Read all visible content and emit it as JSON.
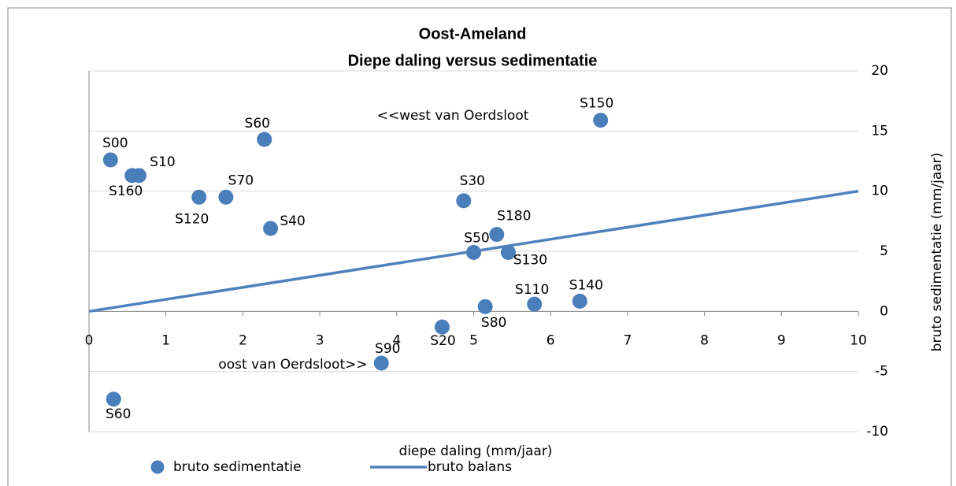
{
  "chart_data": {
    "type": "scatter",
    "title": "Oost-Ameland",
    "subtitle": "Diepe daling versus sedimentatie",
    "x_label": "diepe daling (mm/jaar)",
    "y_label": "bruto sedimentatie (mm/jaar)",
    "annotations": [
      "<<west van Oerdsloot",
      "oost van Oerdsloot>>"
    ],
    "xlim": [
      0,
      10
    ],
    "xticks": [
      0,
      1,
      2,
      3,
      4,
      5,
      6,
      7,
      8,
      9,
      10
    ],
    "ylim": [
      -10,
      20
    ],
    "yticks": [
      -10,
      -5,
      0,
      5,
      10,
      15,
      20
    ],
    "grid": true,
    "legend": "bottom",
    "series": [
      {
        "name": "bruto sedimentatie",
        "color": "#4a7ebb",
        "mode": "markers",
        "labels": [
          "S00",
          "S160",
          "S10",
          "S60",
          "S120",
          "S70",
          "S40",
          "S30",
          "S150",
          "S180",
          "S50",
          "S130",
          "S140",
          "S110",
          "S80",
          "S20",
          "S90",
          "S60"
        ],
        "x": [
          0.28,
          0.56,
          0.65,
          2.28,
          1.43,
          1.78,
          2.36,
          4.87,
          6.65,
          5.3,
          5.0,
          5.45,
          6.38,
          5.79,
          5.15,
          4.59,
          3.8,
          0.32
        ],
        "values": [
          12.6,
          11.3,
          11.3,
          14.3,
          9.5,
          9.5,
          6.9,
          9.2,
          15.9,
          6.4,
          4.9,
          4.9,
          0.85,
          0.6,
          0.4,
          -1.3,
          -4.3,
          -7.3
        ]
      },
      {
        "name": "bruto balans",
        "color": "#4f81bd",
        "mode": "line",
        "x": [
          0,
          10
        ],
        "values": [
          0,
          10
        ]
      }
    ]
  }
}
